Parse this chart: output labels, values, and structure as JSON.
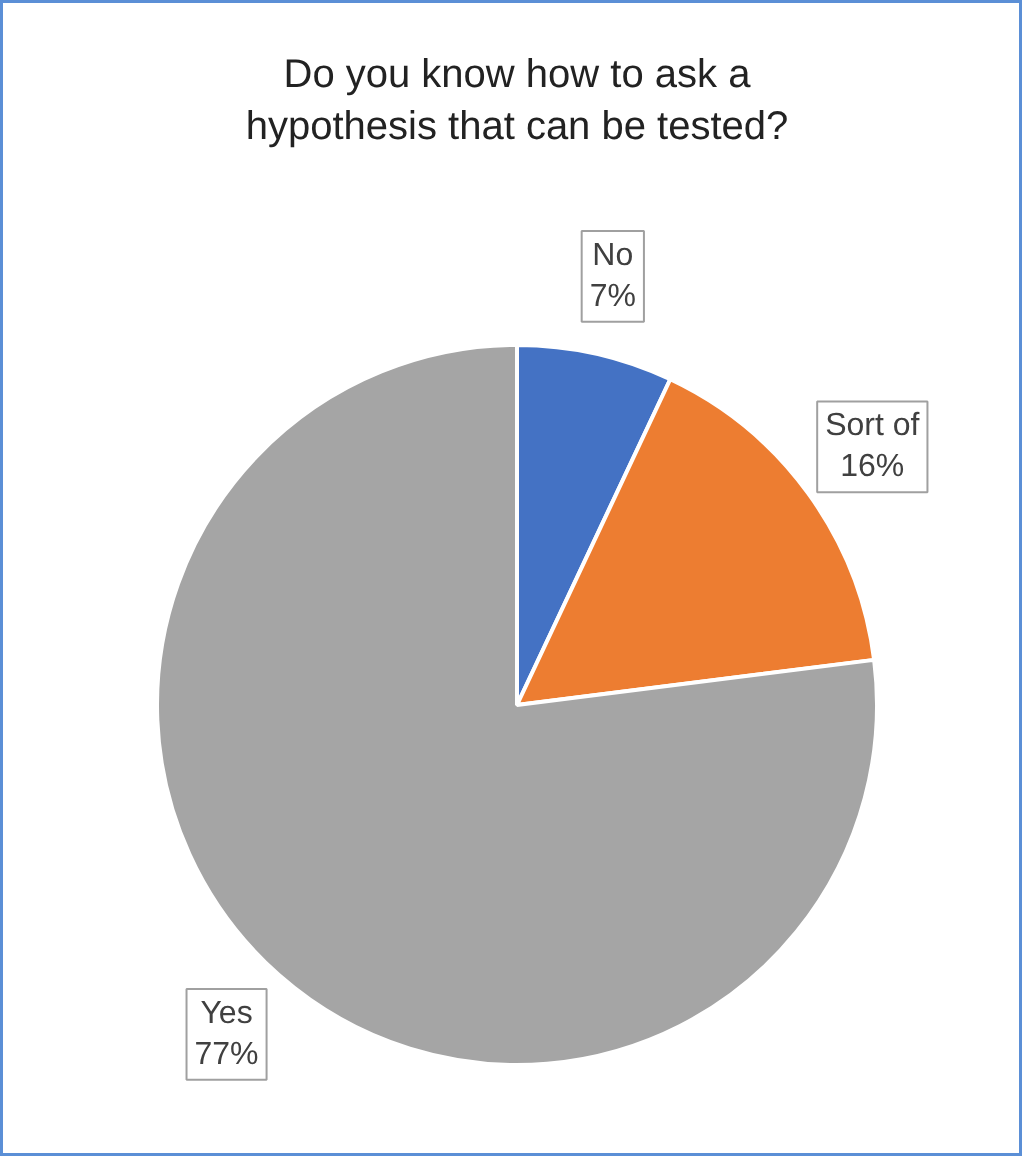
{
  "chart_data": {
    "type": "pie",
    "title": "Do you know how to ask a hypothesis that can be tested?",
    "categories": [
      "No",
      "Sort of",
      "Yes"
    ],
    "values": [
      7,
      16,
      77
    ],
    "colors": [
      "#4472c4",
      "#ed7d31",
      "#a5a5a5"
    ],
    "value_labels": [
      "7%",
      "16%",
      "77%"
    ]
  }
}
